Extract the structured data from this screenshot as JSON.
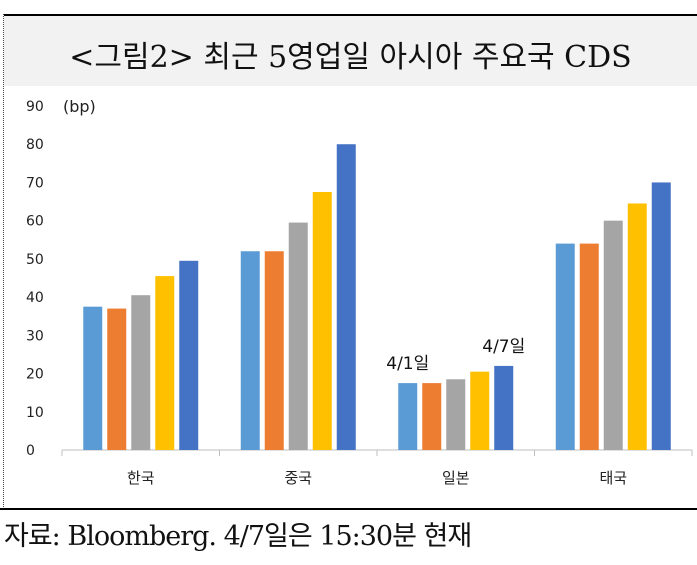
{
  "title": "<그림2> 최근 5영업일 아시아 주요국 CDS",
  "source": "자료: Bloomberg. 4/7일은 15:30분 현재",
  "chart_data": {
    "type": "bar",
    "categories": [
      "한국",
      "중국",
      "일본",
      "태국"
    ],
    "unit_label": "(bp)",
    "ylim": [
      0,
      90
    ],
    "yticks": [
      0,
      10,
      20,
      30,
      40,
      50,
      60,
      70,
      80,
      90
    ],
    "grid": false,
    "series": [
      {
        "color": "#5b9bd5",
        "values": [
          37.5,
          52,
          17.5,
          54
        ]
      },
      {
        "color": "#ed7d31",
        "values": [
          37,
          52,
          17.5,
          54
        ]
      },
      {
        "color": "#a5a5a5",
        "values": [
          40.5,
          59.5,
          18.5,
          60
        ]
      },
      {
        "color": "#ffc000",
        "values": [
          45.5,
          67.5,
          20.5,
          64.5
        ]
      },
      {
        "color": "#4472c4",
        "values": [
          49.5,
          80,
          22,
          70
        ]
      }
    ],
    "annotations": [
      {
        "text": "4/1일",
        "category": "일본",
        "series_index": 0
      },
      {
        "text": "4/7일",
        "category": "일본",
        "series_index": 4
      }
    ]
  }
}
